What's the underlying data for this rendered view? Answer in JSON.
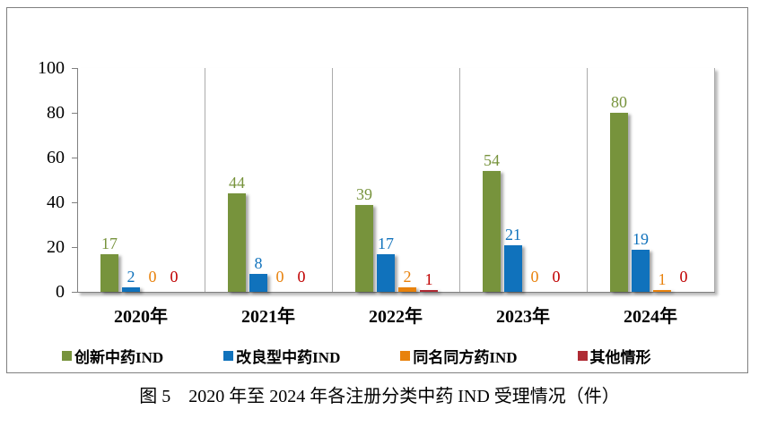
{
  "figure": {
    "caption": "图 5　2020 年至 2024 年各注册分类中药 IND 受理情况（件）"
  },
  "chart_data": {
    "type": "bar",
    "title": "图 5 2020 年至 2024 年各注册分类中药 IND 受理情况（件）",
    "categories": [
      "2020年",
      "2021年",
      "2022年",
      "2023年",
      "2024年"
    ],
    "series": [
      {
        "name": "创新中药IND",
        "color": "#77933C",
        "label_color": "#77933C",
        "values": [
          17,
          44,
          39,
          54,
          80
        ]
      },
      {
        "name": "改良型中药IND",
        "color": "#1072BC",
        "label_color": "#1072BC",
        "values": [
          2,
          8,
          17,
          21,
          19
        ]
      },
      {
        "name": "同名同方药IND",
        "color": "#E8820D",
        "label_color": "#E8820D",
        "values": [
          0,
          0,
          2,
          0,
          1
        ]
      },
      {
        "name": "其他情形",
        "color": "#AF2B34",
        "label_color": "#C00000",
        "values": [
          0,
          0,
          1,
          0,
          0
        ]
      }
    ],
    "xlabel": "",
    "ylabel": "",
    "ylim": [
      0,
      100
    ],
    "yticks": [
      0,
      20,
      40,
      60,
      80,
      100
    ],
    "grid": "vertical-group-separators",
    "legend_position": "bottom",
    "axis_color": "#808080",
    "gridline_color": "#ababab"
  }
}
